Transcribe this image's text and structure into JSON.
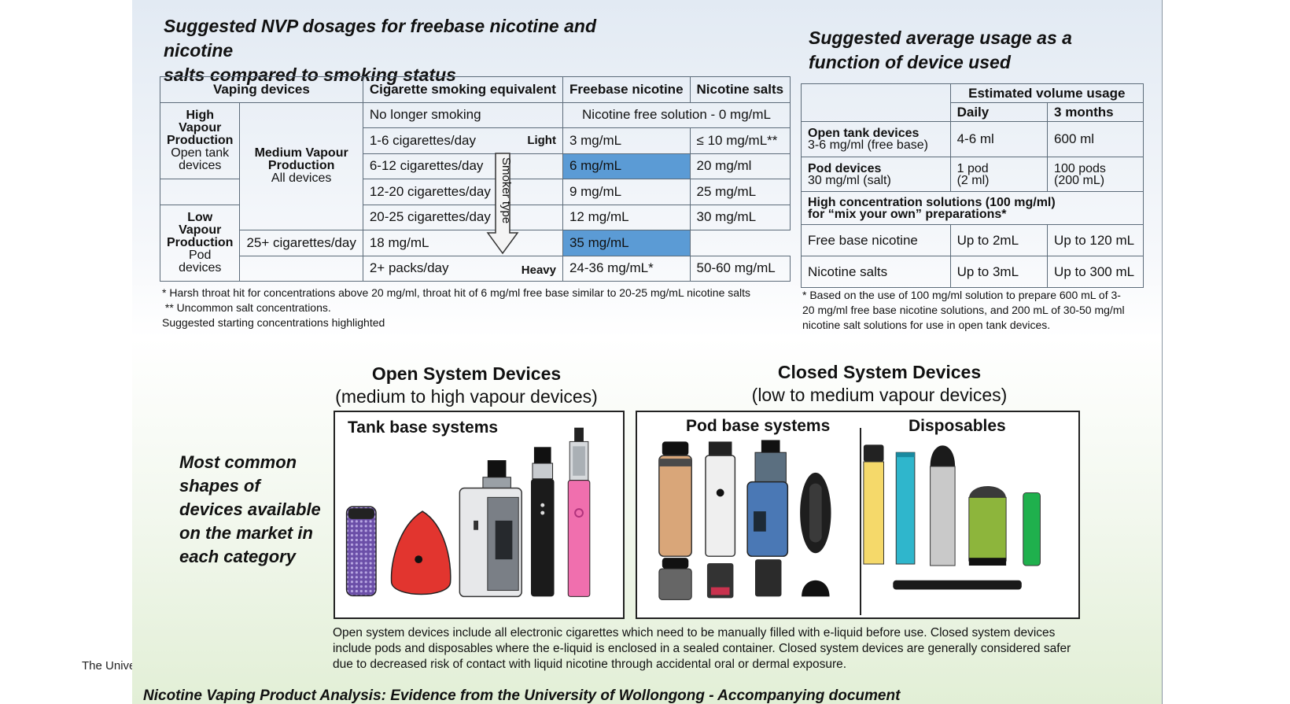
{
  "dosage": {
    "title_line1": "Suggested NVP dosages for freebase nicotine and nicotine",
    "title_line2": "salts compared to smoking status",
    "headers": {
      "devices": "Vaping devices",
      "cig": "Cigarette smoking equivalent",
      "freebase": "Freebase nicotine",
      "salts": "Nicotine salts"
    },
    "high": {
      "bold": "High Vapour Production",
      "plain": "Open tank devices"
    },
    "medium": {
      "bold": "Medium Vapour Production",
      "plain": "All devices"
    },
    "low": {
      "bold": "Low Vapour Production",
      "plain": "Pod devices"
    },
    "rows": [
      {
        "cig": "No longer smoking",
        "merged": "Nicotine free solution  -  0 mg/mL"
      },
      {
        "cig": "1-6 cigarettes/day",
        "level": "Light",
        "freebase": "3 mg/mL",
        "salts": "≤ 10 mg/mL**"
      },
      {
        "cig": "6-12 cigarettes/day",
        "freebase": "6 mg/mL",
        "salts": "20 mg/ml"
      },
      {
        "cig": "12-20 cigarettes/day",
        "freebase": "9 mg/mL",
        "salts": "25 mg/mL"
      },
      {
        "cig": "20-25 cigarettes/day",
        "freebase": "12 mg/mL",
        "salts": "30 mg/mL"
      },
      {
        "cig": "25+ cigarettes/day",
        "freebase": "18 mg/mL",
        "salts": "35 mg/mL"
      },
      {
        "cig": "2+ packs/day",
        "level": "Heavy",
        "freebase": "24-36 mg/mL*",
        "salts": "50-60 mg/mL"
      }
    ],
    "arrow_label": "Smoker type",
    "notes": [
      "* Harsh throat hit for concentrations above 20 mg/ml, throat hit of 6 mg/ml free base similar to 20-25  mg/mL nicotine salts",
      " ** Uncommon salt concentrations.",
      "Suggested starting concentrations highlighted"
    ]
  },
  "usage": {
    "title_line1": "Suggested average usage as a",
    "title_line2": "function of device used",
    "header": "Estimated volume usage",
    "daily": "Daily",
    "months": "3 months",
    "open": {
      "name": "Open tank devices",
      "sub": "3-6 mg/ml (free base)",
      "daily": "4-6 ml",
      "months": "600 ml"
    },
    "pod": {
      "name": "Pod devices",
      "sub": "30 mg/ml (salt)",
      "daily1": "1 pod",
      "daily2": "(2 ml)",
      "months1": "100 pods",
      "months2": "(200 mL)"
    },
    "high_conc1": "High concentration solutions (100 mg/ml)",
    "high_conc2": "for “mix your own” preparations*",
    "freebase": {
      "name": "Free base nicotine",
      "daily": "Up to 2mL",
      "months": "Up to 120 mL"
    },
    "salts": {
      "name": "Nicotine salts",
      "daily": "Up to 3mL",
      "months": "Up to 300 mL"
    },
    "note": "* Based on the use of 100 mg/ml solution to prepare 600 mL of 3-20 mg/ml free base nicotine solutions, and 200 mL of 30-50 mg/ml nicotine salt solutions for use in open tank devices."
  },
  "devices": {
    "open_title": "Open System Devices",
    "open_sub": "(medium to high vapour devices)",
    "closed_title": "Closed System Devices",
    "closed_sub": "(low to medium vapour devices)",
    "tank_label": "Tank base systems",
    "pod_label": "Pod base systems",
    "disp_label": "Disposables",
    "caption": "Most common shapes of devices available on the market in each category",
    "description": "Open system devices include all electronic cigarettes which need to be manually filled with e-liquid before use. Closed system devices include pods and disposables where the e-liquid is enclosed in a sealed container. Closed system devices are generally considered safer due to decreased risk of contact with liquid nicotine through accidental oral or dermal exposure."
  },
  "footer": {
    "title": "Nicotine Vaping Product Analysis: Evidence from the University of Wollongong - Accompanying document",
    "side_text": "The Unive"
  },
  "colors": {
    "highlight": "#5b9bd5",
    "border": "#5c6b79"
  }
}
